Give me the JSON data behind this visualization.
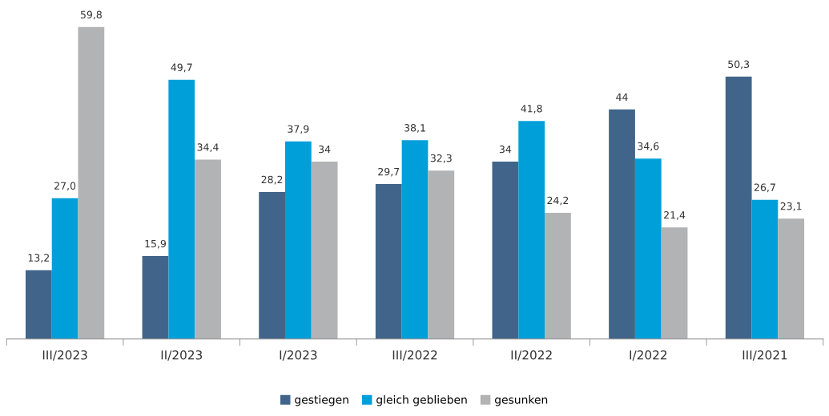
{
  "chart_data": {
    "type": "bar",
    "categories": [
      "III/2023",
      "II/2023",
      "I/2023",
      "III/2022",
      "II/2022",
      "I/2022",
      "III/2021"
    ],
    "series": [
      {
        "name": "gestiegen",
        "color": "#41658a",
        "values": [
          13.2,
          15.9,
          28.2,
          29.7,
          34,
          44,
          50.3
        ],
        "value_labels": [
          "13,2",
          "15,9",
          "28,2",
          "29,7",
          "34",
          "44",
          "50,3"
        ]
      },
      {
        "name": "gleich geblieben",
        "color": "#009fda",
        "values": [
          27.0,
          49.7,
          37.9,
          38.1,
          41.8,
          34.6,
          26.7
        ],
        "value_labels": [
          "27,0",
          "49,7",
          "37,9",
          "38,1",
          "41,8",
          "34,6",
          "26,7"
        ]
      },
      {
        "name": "gesunken",
        "color": "#b2b3b5",
        "values": [
          59.8,
          34.4,
          34,
          32.3,
          24.2,
          21.4,
          23.1
        ],
        "value_labels": [
          "59,8",
          "34,4",
          "34",
          "32,3",
          "24,2",
          "21,4",
          "23,1"
        ]
      }
    ],
    "legend": "bottom"
  }
}
